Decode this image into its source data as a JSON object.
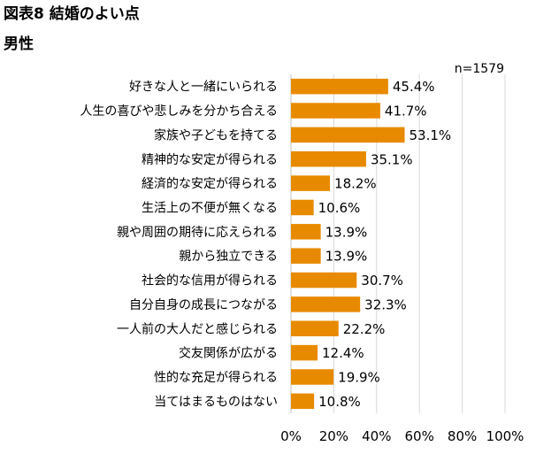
{
  "figure": {
    "title": "図表8 結婚のよい点",
    "panel_title": "男性"
  },
  "chart_data": {
    "type": "bar",
    "orientation": "horizontal",
    "title": "図表8 結婚のよい点",
    "subtitle": "男性",
    "annotation": "n=1579",
    "bar_color": "#E88A00",
    "grid_color": "#D9D9D9",
    "categories": [
      "好きな人と一緒にいられる",
      "人生の喜びや悲しみを分かち合える",
      "家族や子どもを持てる",
      "精神的な安定が得られる",
      "経済的な安定が得られる",
      "生活上の不便が無くなる",
      "親や周囲の期待に応えられる",
      "親から独立できる",
      "社会的な信用が得られる",
      "自分自身の成長につながる",
      "一人前の大人だと感じられる",
      "交友関係が広がる",
      "性的な充足が得られる",
      "当てはまるものはない"
    ],
    "values": [
      45.4,
      41.7,
      53.1,
      35.1,
      18.2,
      10.6,
      13.9,
      13.9,
      30.7,
      32.3,
      22.2,
      12.4,
      19.9,
      10.8
    ],
    "value_labels": [
      "45.4%",
      "41.7%",
      "53.1%",
      "35.1%",
      "18.2%",
      "10.6%",
      "13.9%",
      "13.9%",
      "30.7%",
      "32.3%",
      "22.2%",
      "12.4%",
      "19.9%",
      "10.8%"
    ],
    "xlim": [
      0,
      100
    ],
    "xticks": [
      0,
      20,
      40,
      60,
      80,
      100
    ],
    "xtick_labels": [
      "0%",
      "20%",
      "40%",
      "60%",
      "80%",
      "100%"
    ],
    "xlabel": "",
    "ylabel": "",
    "grid": true
  }
}
